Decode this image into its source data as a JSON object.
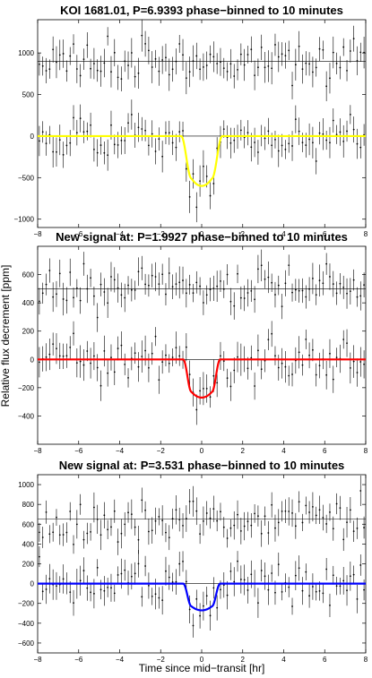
{
  "figure": {
    "ylabel": "Relative flux decrement [ppm]",
    "xlabel": "Time since mid−transit [hr]"
  },
  "chart_data": [
    {
      "type": "scatter",
      "title": "KOI 1681.01, P=6.9393 phase−binned to 10 minutes",
      "xlim": [
        -8,
        8
      ],
      "ylim": [
        -1100,
        1400
      ],
      "xticks": [
        -8,
        -6,
        -4,
        -2,
        0,
        2,
        4,
        6,
        8
      ],
      "yticks": [
        -1000,
        -500,
        0,
        500,
        1000
      ],
      "upper_offset": 900,
      "transit": {
        "depth": 600,
        "half_width": 1.0,
        "ingress": 0.5
      },
      "model_color": "#ffff00",
      "upper_noise": 130,
      "lower_noise": 120,
      "error_bar": 150,
      "seed": 11
    },
    {
      "type": "scatter",
      "title": "New signal at: P=1.9927 phase−binned to 10 minutes",
      "xlim": [
        -8,
        8
      ],
      "ylim": [
        -600,
        800
      ],
      "xticks": [
        -8,
        -6,
        -4,
        -2,
        0,
        2,
        4,
        6,
        8
      ],
      "yticks": [
        -400,
        -200,
        0,
        200,
        400,
        600
      ],
      "upper_offset": 500,
      "transit": {
        "depth": 270,
        "half_width": 0.9,
        "ingress": 0.4
      },
      "model_color": "#ff0000",
      "upper_noise": 80,
      "lower_noise": 75,
      "error_bar": 90,
      "seed": 23
    },
    {
      "type": "scatter",
      "title": "New signal at: P=3.531 phase−binned to 10 minutes",
      "xlim": [
        -8,
        8
      ],
      "ylim": [
        -700,
        1100
      ],
      "xticks": [
        -8,
        -6,
        -4,
        -2,
        0,
        2,
        4,
        6,
        8
      ],
      "yticks": [
        -600,
        -400,
        -200,
        0,
        200,
        400,
        600,
        800,
        1000
      ],
      "upper_offset": 650,
      "transit": {
        "depth": 270,
        "half_width": 0.9,
        "ingress": 0.4
      },
      "model_color": "#0000ff",
      "upper_noise": 120,
      "lower_noise": 110,
      "error_bar": 120,
      "seed": 37
    }
  ]
}
